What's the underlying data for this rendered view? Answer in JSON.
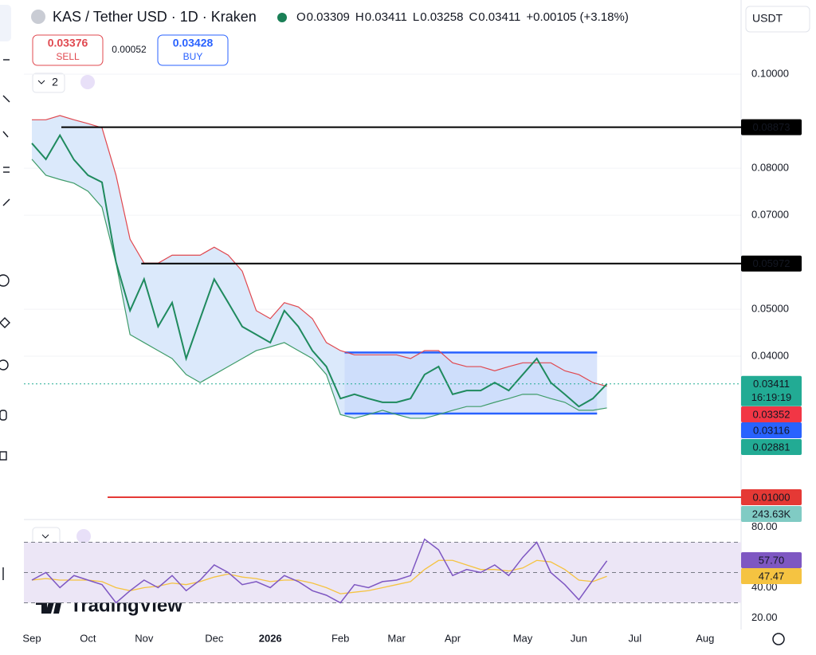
{
  "header": {
    "symbol": "KAS / Tether USD · 1D · Kraken",
    "ohlc": [
      {
        "key": "O",
        "value": "0.03309"
      },
      {
        "key": "H",
        "value": "0.03411"
      },
      {
        "key": "L",
        "value": "0.03258"
      },
      {
        "key": "C",
        "value": "0.03411"
      }
    ],
    "change": "+0.00105 (+3.18%)",
    "sell": {
      "price": "0.03376",
      "label": "SELL"
    },
    "spread": "0.00052",
    "buy": {
      "price": "0.03428",
      "label": "BUY"
    },
    "currency": "USDT",
    "indicators_count": "2"
  },
  "logo": "TradingView",
  "chart_data": [
    {
      "type": "line",
      "categories": [
        "Sep",
        null,
        null,
        null,
        "Oct",
        null,
        null,
        null,
        "Nov",
        null,
        null,
        null,
        null,
        "Dec",
        null,
        null,
        null,
        "2026",
        null,
        null,
        null,
        null,
        "Feb",
        null,
        null,
        null,
        "Mar",
        null,
        null,
        null,
        "Apr",
        null,
        null,
        null,
        null,
        "May",
        null,
        null,
        null,
        "Jun",
        null,
        null,
        null,
        "Jul",
        null,
        null,
        null,
        null,
        "Aug",
        null,
        null,
        null
      ],
      "ylim": [
        0.0056,
        0.109
      ],
      "yticks": [
        {
          "value": 0.1,
          "label": "0.10000"
        },
        {
          "value": 0.08,
          "label": "0.08000"
        },
        {
          "value": 0.07,
          "label": "0.07000"
        },
        {
          "value": 0.05,
          "label": "0.05000"
        },
        {
          "value": 0.04,
          "label": "0.04000"
        }
      ],
      "series": [
        {
          "color": "#e0484f",
          "values": [
            0.0903,
            0.0903,
            0.0912,
            0.0903,
            0.0895,
            0.0886,
            0.0785,
            0.0649,
            0.0598,
            0.0598,
            0.0615,
            0.0615,
            0.0615,
            0.0632,
            0.0615,
            0.0581,
            0.0497,
            0.048,
            0.0514,
            0.0505,
            0.048,
            0.0429,
            0.0412,
            0.0403,
            0.0403,
            0.0403,
            0.0403,
            0.0395,
            0.0412,
            0.0412,
            0.0386,
            0.0378,
            0.0378,
            0.0369,
            0.0378,
            0.0386,
            0.0386,
            0.0386,
            0.0369,
            0.0361,
            0.0344,
            0.0336,
            null,
            null,
            null,
            null,
            null,
            null,
            null,
            null,
            null,
            null
          ]
        },
        {
          "color": "#3f9c6a",
          "values": [
            0.0819,
            0.0785,
            0.0776,
            0.0768,
            0.0751,
            0.0717,
            0.0598,
            0.0446,
            0.0429,
            0.0412,
            0.0395,
            0.0361,
            0.0344,
            0.0361,
            0.0378,
            0.0395,
            0.0412,
            0.042,
            0.0429,
            0.0412,
            0.0395,
            0.0361,
            0.0276,
            0.0268,
            0.0276,
            0.0285,
            0.0276,
            0.0268,
            0.0268,
            0.0276,
            0.0285,
            0.0293,
            0.0293,
            0.0302,
            0.031,
            0.0319,
            0.0319,
            0.031,
            0.0302,
            0.0285,
            0.0285,
            0.029,
            null,
            null,
            null,
            null,
            null,
            null,
            null,
            null,
            null,
            null
          ]
        },
        {
          "color": "#1f8a5e",
          "values": [
            0.0853,
            0.0819,
            0.087,
            0.0818,
            0.0785,
            0.077,
            0.06,
            0.0497,
            0.0564,
            0.0463,
            0.0514,
            0.0395,
            0.048,
            0.0564,
            0.0514,
            0.0463,
            0.0446,
            0.0429,
            0.0497,
            0.0463,
            0.0412,
            0.0378,
            0.031,
            0.0319,
            0.031,
            0.0302,
            0.0302,
            0.031,
            0.0361,
            0.0378,
            0.0319,
            0.0327,
            0.0327,
            0.0344,
            0.0327,
            0.0361,
            0.0395,
            0.0344,
            0.0319,
            0.0293,
            0.031,
            0.0341,
            null,
            null,
            null,
            null,
            null,
            null,
            null,
            null,
            null,
            null
          ]
        }
      ],
      "band_fill": "#dbe9fb",
      "box": {
        "top": 0.0408,
        "bottom": 0.0278,
        "color": "#2962ff",
        "fill": "#c9d8fb"
      },
      "levels": [
        {
          "value": 0.08873,
          "label": "0.08873",
          "color": "#000000"
        },
        {
          "value": 0.05972,
          "label": "0.05972",
          "color": "#000000"
        },
        {
          "value": 0.01,
          "label": "0.01000",
          "color": "#e53935"
        }
      ],
      "last_price": {
        "value": 0.03411,
        "label": "0.03411",
        "color": "#22ab94",
        "countdown": "16:19:19"
      },
      "axis_labels": [
        {
          "value": 0.03352,
          "label": "0.03352",
          "color": "#f23645"
        },
        {
          "value": 0.03116,
          "label": "0.03116",
          "color": "#2962ff"
        },
        {
          "value": 0.02881,
          "label": "0.02881",
          "color": "#22ab94"
        }
      ],
      "volume_label": "243.63K"
    },
    {
      "type": "line",
      "ylim": [
        15,
        83.4
      ],
      "yticks": [
        {
          "value": 80,
          "label": "80.00"
        },
        {
          "value": 40,
          "label": "40.00"
        },
        {
          "value": 20,
          "label": "20.00"
        }
      ],
      "bands": [
        30,
        50,
        70
      ],
      "band_color": "#ece6f6",
      "series": [
        {
          "color": "#7e57c2",
          "values": [
            45,
            50,
            40,
            48,
            45,
            42,
            30,
            38,
            45,
            40,
            48,
            38,
            45,
            55,
            50,
            42,
            44,
            40,
            48,
            44,
            38,
            35,
            30,
            42,
            40,
            44,
            45,
            48,
            72,
            65,
            48,
            52,
            50,
            55,
            48,
            60,
            70,
            50,
            42,
            32,
            45,
            57.7,
            null,
            null,
            null,
            null,
            null,
            null,
            null,
            null,
            null,
            null
          ],
          "value_label": "57.70"
        },
        {
          "color": "#f5c341",
          "values": [
            45,
            46,
            45,
            45,
            45,
            44,
            40,
            38,
            40,
            41,
            43,
            42,
            44,
            47,
            49,
            47,
            46,
            44,
            45,
            45,
            43,
            40,
            36,
            37,
            38,
            40,
            42,
            44,
            52,
            58,
            58,
            55,
            52,
            52,
            51,
            53,
            58,
            57,
            52,
            45,
            44,
            47.47,
            null,
            null,
            null,
            null,
            null,
            null,
            null,
            null,
            null,
            null
          ],
          "value_label": "47.47"
        }
      ]
    }
  ]
}
